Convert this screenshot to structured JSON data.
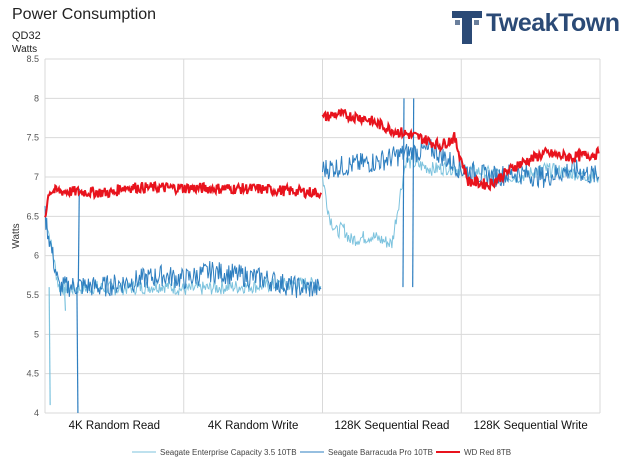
{
  "header": {
    "title": "Power Consumption",
    "subtitle": "QD32",
    "unit_label": "Watts"
  },
  "brand": {
    "name": "TweakTown",
    "color": "#2b4a76"
  },
  "chart_data": {
    "type": "line",
    "title": "Power Consumption",
    "subtitle": "QD32",
    "ylabel": "Watts",
    "ylim": [
      4,
      8.5
    ],
    "yticks": [
      "4",
      "4.5",
      "5",
      "5.5",
      "6",
      "6.5",
      "7",
      "7.5",
      "8",
      "8.5"
    ],
    "categories": [
      "4K Random Read",
      "4K Random Write",
      "128K Sequential Read",
      "128K Sequential Write"
    ],
    "grid": true,
    "legend_position": "bottom",
    "series": [
      {
        "name": "Seagate Enterprise Capacity 3.5 10TB",
        "color": "#7dc3de",
        "segments": [
          {
            "x": [
              0,
              0.1,
              0.2,
              0.35,
              0.5,
              0.7,
              0.85,
              1.0,
              1.3,
              1.6,
              1.9,
              1.99
            ],
            "y": [
              6.55,
              5.6,
              5.58,
              5.6,
              5.58,
              5.6,
              5.62,
              5.57,
              5.6,
              5.62,
              5.65,
              5.6
            ]
          },
          {
            "x": [
              2.0,
              2.05,
              2.1,
              2.15,
              2.2,
              2.35,
              2.5,
              2.6,
              2.7,
              2.8,
              2.9,
              3.0,
              3.2,
              3.4,
              3.6,
              3.8,
              3.99
            ],
            "y": [
              7.0,
              6.5,
              6.3,
              6.35,
              6.2,
              6.25,
              6.15,
              7.2,
              7.15,
              7.1,
              7.12,
              7.1,
              7.05,
              7.0,
              7.1,
              7.05,
              7.0
            ]
          }
        ],
        "spikes": [
          [
            0.03,
            4.1
          ],
          [
            0.14,
            5.3
          ]
        ]
      },
      {
        "name": "Seagate Barracuda Pro 10TB",
        "color": "#2e7fc0",
        "segments": [
          {
            "x": [
              0,
              0.1,
              0.25,
              0.4,
              0.55,
              0.7,
              0.85,
              1.0,
              1.2,
              1.4,
              1.6,
              1.8,
              1.99
            ],
            "y": [
              6.5,
              5.6,
              5.62,
              5.6,
              5.65,
              5.7,
              5.75,
              5.7,
              5.8,
              5.75,
              5.7,
              5.6,
              5.58
            ]
          },
          {
            "x": [
              2.0,
              2.2,
              2.4,
              2.6,
              2.8,
              3.0,
              3.2,
              3.4,
              3.6,
              3.8,
              3.99
            ],
            "y": [
              7.1,
              7.15,
              7.2,
              7.3,
              7.35,
              7.1,
              7.0,
              7.05,
              7.0,
              7.1,
              7.0
            ]
          }
        ],
        "spikes": [
          [
            0.23,
            4.0
          ],
          [
            0.24,
            6.85
          ],
          [
            2.58,
            8.0
          ],
          [
            2.65,
            8.0
          ]
        ]
      },
      {
        "name": "WD Red 8TB",
        "color": "#e8131d",
        "segments": [
          {
            "x": [
              0,
              0.03,
              0.1,
              0.5,
              0.55,
              1.0,
              1.5,
              1.99
            ],
            "y": [
              6.5,
              6.82,
              6.82,
              6.8,
              6.87,
              6.86,
              6.85,
              6.8
            ]
          },
          {
            "x": [
              2.0,
              2.1,
              2.3,
              2.5,
              2.7,
              2.85,
              2.95,
              3.05,
              3.2,
              3.4,
              3.6,
              3.8,
              3.99
            ],
            "y": [
              7.75,
              7.8,
              7.75,
              7.6,
              7.5,
              7.4,
              7.5,
              6.95,
              6.9,
              7.15,
              7.3,
              7.25,
              7.3
            ]
          }
        ],
        "spikes": []
      }
    ]
  }
}
